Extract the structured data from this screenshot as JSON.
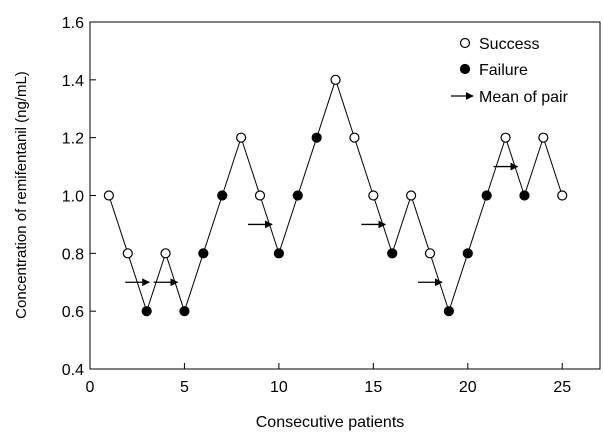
{
  "chart_data": {
    "type": "scatter",
    "title": "",
    "xlabel": "Consecutive patients",
    "ylabel": "Concentration of remifentanil (ng/mL)",
    "xlim": [
      0,
      27
    ],
    "ylim": [
      0.4,
      1.6
    ],
    "x_ticks": [
      0,
      5,
      10,
      15,
      20,
      25
    ],
    "y_ticks": [
      0.4,
      0.6,
      0.8,
      1.0,
      1.2,
      1.4,
      1.6
    ],
    "x_tick_labels": [
      "0",
      "5",
      "10",
      "15",
      "20",
      "25"
    ],
    "y_tick_labels": [
      "0.4",
      "0.6",
      "0.8",
      "1.0",
      "1.2",
      "1.4",
      "1.6"
    ],
    "grid": false,
    "legend_position": "top-right",
    "legend": {
      "success": "Success",
      "failure": "Failure",
      "mean": "Mean of pair"
    },
    "points": [
      {
        "x": 1,
        "y": 1.0,
        "outcome": "success"
      },
      {
        "x": 2,
        "y": 0.8,
        "outcome": "success"
      },
      {
        "x": 3,
        "y": 0.6,
        "outcome": "failure"
      },
      {
        "x": 4,
        "y": 0.8,
        "outcome": "success"
      },
      {
        "x": 5,
        "y": 0.6,
        "outcome": "failure"
      },
      {
        "x": 6,
        "y": 0.8,
        "outcome": "failure"
      },
      {
        "x": 7,
        "y": 1.0,
        "outcome": "failure"
      },
      {
        "x": 8,
        "y": 1.2,
        "outcome": "success"
      },
      {
        "x": 9,
        "y": 1.0,
        "outcome": "success"
      },
      {
        "x": 10,
        "y": 0.8,
        "outcome": "failure"
      },
      {
        "x": 11,
        "y": 1.0,
        "outcome": "failure"
      },
      {
        "x": 12,
        "y": 1.2,
        "outcome": "failure"
      },
      {
        "x": 13,
        "y": 1.4,
        "outcome": "success"
      },
      {
        "x": 14,
        "y": 1.2,
        "outcome": "success"
      },
      {
        "x": 15,
        "y": 1.0,
        "outcome": "success"
      },
      {
        "x": 16,
        "y": 0.8,
        "outcome": "failure"
      },
      {
        "x": 17,
        "y": 1.0,
        "outcome": "success"
      },
      {
        "x": 18,
        "y": 0.8,
        "outcome": "success"
      },
      {
        "x": 19,
        "y": 0.6,
        "outcome": "failure"
      },
      {
        "x": 20,
        "y": 0.8,
        "outcome": "failure"
      },
      {
        "x": 21,
        "y": 1.0,
        "outcome": "failure"
      },
      {
        "x": 22,
        "y": 1.2,
        "outcome": "success"
      },
      {
        "x": 23,
        "y": 1.0,
        "outcome": "failure"
      },
      {
        "x": 24,
        "y": 1.2,
        "outcome": "success"
      },
      {
        "x": 25,
        "y": 1.0,
        "outcome": "success"
      }
    ],
    "mean_of_pair": [
      {
        "x": 2.5,
        "y": 0.7
      },
      {
        "x": 4.0,
        "y": 0.7
      },
      {
        "x": 9.0,
        "y": 0.9
      },
      {
        "x": 15.0,
        "y": 0.9
      },
      {
        "x": 18.0,
        "y": 0.7
      },
      {
        "x": 22.0,
        "y": 1.1
      }
    ]
  }
}
